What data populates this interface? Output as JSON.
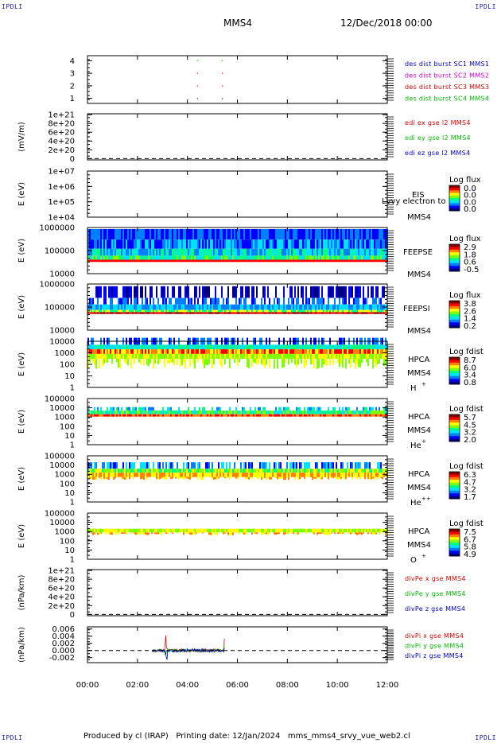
{
  "header": {
    "corner_left_top": "IPDLI",
    "corner_right_top": "IPDLI",
    "corner_left_bottom": "IPDLI",
    "corner_right_bottom": "IPDLI",
    "spacecraft": "MMS4",
    "date": "12/Dec/2018 00:00"
  },
  "footer": {
    "text": "Produced by cl (IRAP)   Printing date: 12/Jan/2024   mms_mms4_srvy_vue_web2.cl"
  },
  "colors": {
    "red": "#dd0000",
    "green": "#00bb00",
    "blue": "#0000cc",
    "magenta": "#cc00cc",
    "spectro_scale": [
      "#000080",
      "#0000ff",
      "#0080ff",
      "#00e0ff",
      "#00ff80",
      "#80ff00",
      "#ffff00",
      "#ff8000",
      "#ff0000",
      "#800000"
    ]
  },
  "chart_data": [
    {
      "type": "scatter",
      "panel": "burst",
      "yticks": [
        "1",
        "2",
        "3",
        "4"
      ],
      "ylim": [
        0.6,
        4.4
      ],
      "xlim": [
        0,
        12
      ],
      "series": [
        {
          "name": "des dist burst SC1 MMS1",
          "color": "#0000cc",
          "points": [
            [
              4.4,
              1
            ],
            [
              5.4,
              1
            ]
          ]
        },
        {
          "name": "des dist burst SC2 MMS2",
          "color": "#cc00cc",
          "points": [
            [
              4.4,
              2
            ],
            [
              5.4,
              2
            ]
          ]
        },
        {
          "name": "des dist burst SC3 MMS3",
          "color": "#dd0000",
          "points": [
            [
              4.4,
              3
            ],
            [
              5.4,
              3
            ]
          ]
        },
        {
          "name": "des dist burst SC4 MMS4",
          "color": "#00bb00",
          "points": [
            [
              4.4,
              4
            ],
            [
              5.4,
              4
            ]
          ]
        }
      ]
    },
    {
      "type": "line",
      "panel": "edi",
      "ylabel": "(mV/m)",
      "yticks": [
        "0",
        "2e+20",
        "4e+20",
        "6e+20",
        "8e+20",
        "1e+21"
      ],
      "ylim": [
        -3e+19,
        1.02e+21
      ],
      "xlim": [
        0,
        12
      ],
      "zero_line": true,
      "series": [
        {
          "name": "edi ex gse l2 MMS4",
          "color": "#dd0000"
        },
        {
          "name": "edi ey gse l2 MMS4",
          "color": "#00bb00"
        },
        {
          "name": "edi ez gse l2 MMS4",
          "color": "#0000cc"
        }
      ]
    },
    {
      "type": "heatmap",
      "panel": "eis",
      "ylabel": "E (eV)",
      "yscale": "log",
      "yticks": [
        "1e+04",
        "1e+05",
        "1e+06",
        "1e+07"
      ],
      "ylim": [
        10000,
        10000000
      ],
      "xlim": [
        0,
        12
      ],
      "instrument": "EIS",
      "species": "Lvvy electron to",
      "spacecraft": "MMS4",
      "colorbar": {
        "title": "Log flux",
        "ticks": [
          "0.0",
          "0.0",
          "0.0",
          "0.0"
        ]
      }
    },
    {
      "type": "heatmap",
      "panel": "feepse",
      "ylabel": "E (eV)",
      "yscale": "log",
      "yticks": [
        "10000",
        "100000",
        "1000000"
      ],
      "ylim": [
        10000,
        1000000
      ],
      "xlim": [
        0,
        12
      ],
      "instrument": "FEEPSE",
      "spacecraft": "MMS4",
      "colorbar": {
        "title": "Log flux",
        "ticks": [
          "2.9",
          "1.8",
          "0.6",
          "-0.5"
        ]
      },
      "data_xlim": [
        0,
        12
      ]
    },
    {
      "type": "heatmap",
      "panel": "feepsi",
      "ylabel": "E (eV)",
      "yscale": "log",
      "yticks": [
        "10000",
        "100000",
        "1000000"
      ],
      "ylim": [
        10000,
        1000000
      ],
      "xlim": [
        0,
        12
      ],
      "instrument": "FEEPSI",
      "spacecraft": "MMS4",
      "colorbar": {
        "title": "Log flux",
        "ticks": [
          "3.8",
          "2.6",
          "1.4",
          "0.2"
        ]
      },
      "data_xlim": [
        0,
        12
      ]
    },
    {
      "type": "heatmap",
      "panel": "hpca_h",
      "ylabel": "E (eV)",
      "yscale": "log",
      "yticks": [
        "1",
        "10",
        "100",
        "1000",
        "10000"
      ],
      "ylim": [
        1,
        10000
      ],
      "xlim": [
        0,
        12
      ],
      "instrument": "HPCA",
      "spacecraft": "MMS4",
      "species": "H",
      "species_sup": "+",
      "colorbar": {
        "title": "Log fdist",
        "ticks": [
          "8.7",
          "6.0",
          "3.4",
          "0.8"
        ]
      },
      "data_xlim": [
        0,
        12
      ]
    },
    {
      "type": "heatmap",
      "panel": "hpca_he1",
      "ylabel": "E (eV)",
      "yscale": "log",
      "yticks": [
        "1",
        "10",
        "100",
        "1000",
        "10000",
        "100000"
      ],
      "ylim": [
        1,
        100000
      ],
      "xlim": [
        0,
        12
      ],
      "instrument": "HPCA",
      "spacecraft": "MMS4",
      "species": "He",
      "species_sup": "+",
      "colorbar": {
        "title": "Log fdist",
        "ticks": [
          "5.7",
          "4.5",
          "3.2",
          "2.0"
        ]
      },
      "data_xlim": [
        0,
        12
      ]
    },
    {
      "type": "heatmap",
      "panel": "hpca_he2",
      "ylabel": "E (eV)",
      "yscale": "log",
      "yticks": [
        "1",
        "10",
        "100",
        "1000",
        "10000",
        "100000"
      ],
      "ylim": [
        1,
        100000
      ],
      "xlim": [
        0,
        12
      ],
      "instrument": "HPCA",
      "spacecraft": "MMS4",
      "species": "He",
      "species_sup": "++",
      "colorbar": {
        "title": "Log fdist",
        "ticks": [
          "6.3",
          "4.7",
          "3.2",
          "1.7"
        ]
      },
      "data_xlim": [
        0,
        12
      ]
    },
    {
      "type": "heatmap",
      "panel": "hpca_o",
      "ylabel": "E (eV)",
      "yscale": "log",
      "yticks": [
        "1",
        "10",
        "100",
        "1000",
        "10000",
        "100000"
      ],
      "ylim": [
        1,
        100000
      ],
      "xlim": [
        0,
        12
      ],
      "instrument": "HPCA",
      "spacecraft": "MMS4",
      "species": "O",
      "species_sup": "+",
      "colorbar": {
        "title": "Log fdist",
        "ticks": [
          "7.5",
          "6.7",
          "5.8",
          "4.9"
        ]
      },
      "data_xlim": [
        0,
        12
      ]
    },
    {
      "type": "line",
      "panel": "divpe",
      "ylabel": "(nPa/km)",
      "yticks": [
        "0",
        "2e+20",
        "4e+20",
        "6e+20",
        "8e+20",
        "1e+21"
      ],
      "ylim": [
        -3e+19,
        1.02e+21
      ],
      "xlim": [
        0,
        12
      ],
      "zero_line": true,
      "series": [
        {
          "name": "divPe x gse MMS4",
          "color": "#dd0000"
        },
        {
          "name": "divPe y gse MMS4",
          "color": "#00bb00"
        },
        {
          "name": "divPe z gse MMS4",
          "color": "#0000cc"
        }
      ]
    },
    {
      "type": "line",
      "panel": "divpi",
      "ylabel": "(nPa/km)",
      "yticks": [
        "-0.002",
        "0.000",
        "0.002",
        "0.004",
        "0.006"
      ],
      "ylim": [
        -0.0034,
        0.0066
      ],
      "xlim": [
        0,
        12
      ],
      "zero_line": true,
      "data_xlim": [
        2.6,
        5.5
      ],
      "series": [
        {
          "name": "divPi x gse MMS4",
          "color": "#dd0000"
        },
        {
          "name": "divPi y gse MMS4",
          "color": "#00bb00"
        },
        {
          "name": "divPi z gse MMS4",
          "color": "#0000cc"
        }
      ]
    }
  ],
  "xaxis": {
    "ticks": [
      "00:00",
      "02:00",
      "04:00",
      "06:00",
      "08:00",
      "10:00",
      "12:00"
    ],
    "tick_values": [
      0,
      2,
      4,
      6,
      8,
      10,
      12
    ]
  }
}
